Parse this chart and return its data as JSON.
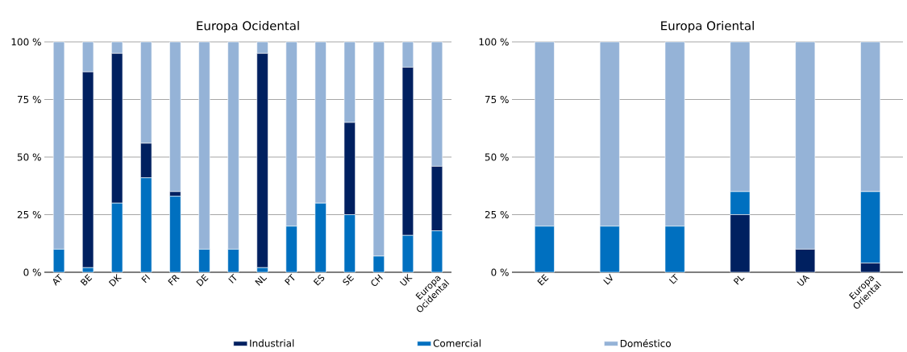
{
  "chart_data": [
    {
      "type": "bar",
      "title": "Europa Ocidental",
      "stacked": true,
      "grid": "y",
      "legend": false,
      "categories": [
        "AT",
        "BE",
        "DK",
        "FI",
        "FR",
        "DE",
        "IT",
        "NL",
        "PT",
        "ES",
        "SE",
        "CH",
        "UK",
        "Europa Ocidental"
      ],
      "ylim": [
        0,
        100
      ],
      "yticks": [
        {
          "value": 0,
          "label": "0 %"
        },
        {
          "value": 25,
          "label": "25 %"
        },
        {
          "value": 50,
          "label": "50 %"
        },
        {
          "value": 75,
          "label": "75 %"
        },
        {
          "value": 100,
          "label": "100 %"
        }
      ],
      "series": [
        {
          "color": "#0070c0",
          "values": [
            10,
            2,
            30,
            41,
            33,
            10,
            10,
            2,
            20,
            30,
            25,
            7,
            16,
            18
          ]
        },
        {
          "color": "#002060",
          "values": [
            0,
            85,
            65,
            15,
            2,
            0,
            0,
            93,
            0,
            0,
            40,
            0,
            73,
            28
          ]
        },
        {
          "color": "#95b3d7",
          "values": [
            90,
            13,
            5,
            44,
            65,
            90,
            90,
            5,
            80,
            70,
            35,
            93,
            11,
            54
          ]
        }
      ]
    },
    {
      "type": "bar",
      "title": "Europa Oriental",
      "stacked": true,
      "grid": "y",
      "legend": "bottom",
      "categories": [
        "EE",
        "LV",
        "LT",
        "PL",
        "UA",
        "Europa Oriental"
      ],
      "ylim": [
        0,
        100
      ],
      "yticks": [
        {
          "value": 0,
          "label": "0 %"
        },
        {
          "value": 25,
          "label": "25 %"
        },
        {
          "value": 50,
          "label": "50 %"
        },
        {
          "value": 75,
          "label": "75 %"
        },
        {
          "value": 100,
          "label": "100 %"
        }
      ],
      "series": [
        {
          "name": "Industrial",
          "color": "#002060",
          "values": [
            0,
            0,
            0,
            25,
            10,
            4
          ]
        },
        {
          "name": "Comercial",
          "color": "#0070c0",
          "values": [
            20,
            20,
            20,
            10,
            0,
            31
          ]
        },
        {
          "name": "Doméstico",
          "color": "#95b3d7",
          "values": [
            80,
            80,
            80,
            65,
            90,
            65
          ]
        }
      ]
    }
  ]
}
